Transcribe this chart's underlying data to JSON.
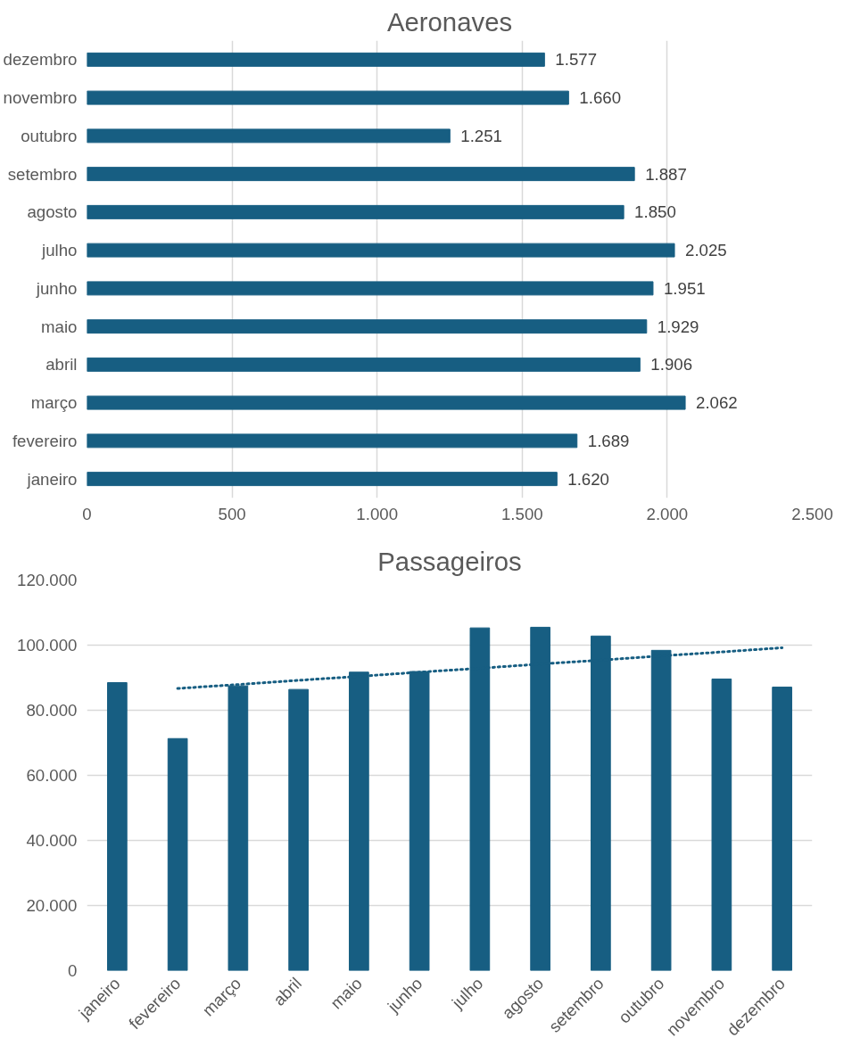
{
  "chart_data": [
    {
      "type": "bar",
      "title": "Aeronaves",
      "orientation": "horizontal",
      "categories": [
        "dezembro",
        "novembro",
        "outubro",
        "setembro",
        "agosto",
        "julho",
        "junho",
        "maio",
        "abril",
        "março",
        "fevereiro",
        "janeiro"
      ],
      "series": [
        {
          "color": "#175e82",
          "values": [
            1577,
            1660,
            1251,
            1887,
            1850,
            2025,
            1951,
            1929,
            1906,
            2062,
            1689,
            1620
          ],
          "value_labels": [
            "1.577",
            "1.660",
            "1.251",
            "1.887",
            "1.850",
            "2.025",
            "1.951",
            "1.929",
            "1.906",
            "2.062",
            "1.689",
            "1.620"
          ]
        }
      ],
      "xlim": [
        0,
        2500
      ],
      "xticks": [
        0,
        {
          "value": 500,
          "label": "500"
        },
        {
          "value": 1000,
          "label": "1.000"
        },
        {
          "value": 1500,
          "label": "1.500"
        },
        {
          "value": 2000,
          "label": "2.000"
        },
        {
          "value": 2500,
          "label": "2.500"
        }
      ],
      "grid": "x"
    },
    {
      "type": "bar",
      "title": "Passageiros",
      "categories": [
        "janeiro",
        "fevereiro",
        "março",
        "abril",
        "maio",
        "junho",
        "julho",
        "agosto",
        "setembro",
        "outubro",
        "novembro",
        "dezembro"
      ],
      "series": [
        {
          "color": "#175e82",
          "values": [
            88500,
            71300,
            87500,
            86400,
            91700,
            91900,
            105300,
            105500,
            102800,
            98400,
            89600,
            87100
          ]
        },
        {
          "type": "line",
          "color": "#175e82",
          "line_style": "dotted",
          "values": [
            null,
            86700,
            87900,
            89200,
            90400,
            91700,
            92900,
            94200,
            95400,
            96700,
            97900,
            99200
          ]
        }
      ],
      "ylim": [
        0,
        120000
      ],
      "yticks": [
        0,
        {
          "value": 20000,
          "label": "20.000"
        },
        {
          "value": 40000,
          "label": "40.000"
        },
        {
          "value": 60000,
          "label": "60.000"
        },
        {
          "value": 80000,
          "label": "80.000"
        },
        {
          "value": 100000,
          "label": "100.000"
        },
        {
          "value": 120000,
          "label": "120.000"
        }
      ],
      "grid": "y"
    }
  ]
}
